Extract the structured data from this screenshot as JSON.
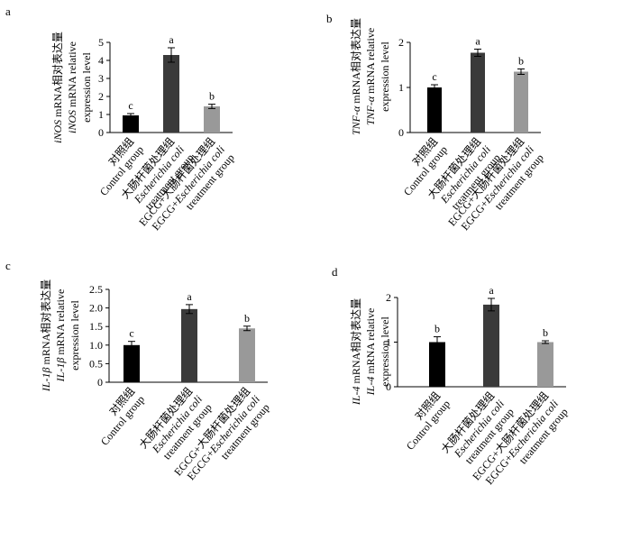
{
  "chart_data": [
    {
      "type": "bar",
      "panel_label": "a",
      "ylabel_lines": [
        "iNOS mRNA相对表达量",
        "iNOS mRNA relative",
        "expression level"
      ],
      "yticks": [
        "0",
        "1",
        "2",
        "3",
        "4",
        "5"
      ],
      "ylim": [
        0,
        5
      ],
      "categories": [
        [
          "对照组",
          "Control group"
        ],
        [
          "大肠杆菌处理组",
          "Escherichia coli",
          "treatment group"
        ],
        [
          "EGCG+大肠杆菌处理组",
          "EGCG+Escherichia coli",
          "treatment group"
        ]
      ],
      "values": [
        0.95,
        4.3,
        1.45
      ],
      "errors": [
        0.1,
        0.4,
        0.12
      ],
      "sig_letters": [
        "c",
        "a",
        "b"
      ],
      "colors": [
        "#000000",
        "#3a3a3a",
        "#999999"
      ]
    },
    {
      "type": "bar",
      "panel_label": "b",
      "ylabel_lines": [
        "TNF-α mRNA相对表达量",
        "TNF-α mRNA relative",
        "expression level"
      ],
      "yticks": [
        "0",
        "1",
        "2"
      ],
      "ylim": [
        0,
        2
      ],
      "categories": [
        [
          "对照组",
          "Control group"
        ],
        [
          "大肠杆菌处理组",
          "Escherichia coli",
          "treatment group"
        ],
        [
          "EGCG+大肠杆菌处理组",
          "EGCG+Escherichia coli",
          "treatment group"
        ]
      ],
      "values": [
        1.0,
        1.77,
        1.35
      ],
      "errors": [
        0.06,
        0.08,
        0.06
      ],
      "sig_letters": [
        "c",
        "a",
        "b"
      ],
      "colors": [
        "#000000",
        "#3a3a3a",
        "#999999"
      ]
    },
    {
      "type": "bar",
      "panel_label": "c",
      "ylabel_lines": [
        "IL-1β mRNA相对表达量",
        "IL-1β mRNA relative",
        "expression level"
      ],
      "yticks": [
        "0",
        "0.5",
        "1.0",
        "1.5",
        "2.0",
        "2.5"
      ],
      "ylim": [
        0,
        2.5
      ],
      "categories": [
        [
          "对照组",
          "Control group"
        ],
        [
          "大肠杆菌处理组",
          "Escherichia coli",
          "treatment group"
        ],
        [
          "EGCG+大肠杆菌处理组",
          "EGCG+Escherichia coli",
          "treatment group"
        ]
      ],
      "values": [
        1.0,
        1.97,
        1.45
      ],
      "errors": [
        0.1,
        0.12,
        0.06
      ],
      "sig_letters": [
        "c",
        "a",
        "b"
      ],
      "colors": [
        "#000000",
        "#3a3a3a",
        "#999999"
      ]
    },
    {
      "type": "bar",
      "panel_label": "d",
      "ylabel_lines": [
        "IL-4 mRNA相对表达量",
        "IL-4 mRNA relative",
        "expression level"
      ],
      "yticks": [
        "0",
        "1",
        "2"
      ],
      "ylim": [
        0,
        2
      ],
      "categories": [
        [
          "对照组",
          "Control group"
        ],
        [
          "大肠杆菌处理组",
          "Escherichia coli",
          "treatment group"
        ],
        [
          "EGCG+大肠杆菌处理组",
          "EGCG+Escherichia coli",
          "treatment group"
        ]
      ],
      "values": [
        1.0,
        1.84,
        1.0
      ],
      "errors": [
        0.12,
        0.14,
        0.03
      ],
      "sig_letters": [
        "b",
        "a",
        "b"
      ],
      "colors": [
        "#000000",
        "#3a3a3a",
        "#999999"
      ]
    }
  ]
}
